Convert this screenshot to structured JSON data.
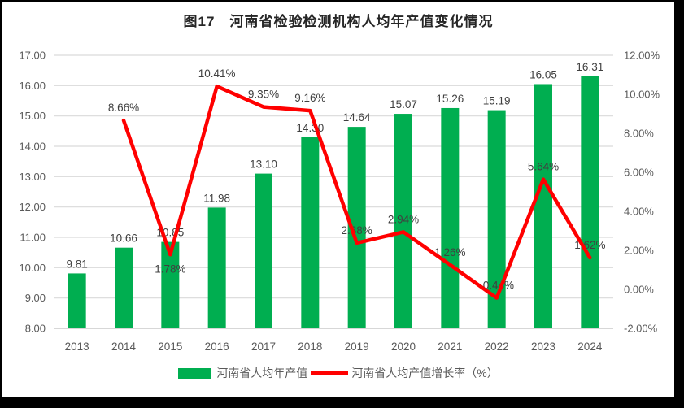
{
  "figure": {
    "title": "图17　河南省检验检测机构人均年产值变化情况"
  },
  "chart_data": {
    "type": "combo-bar-line",
    "title": "图17　河南省检验检测机构人均年产值变化情况",
    "categories": [
      "2013",
      "2014",
      "2015",
      "2016",
      "2017",
      "2018",
      "2019",
      "2020",
      "2021",
      "2022",
      "2023",
      "2024"
    ],
    "series": [
      {
        "name": "河南省人均年产值",
        "type": "bar",
        "axis": "left",
        "color": "#00AE50",
        "values": [
          9.81,
          10.66,
          10.85,
          11.98,
          13.1,
          14.3,
          14.64,
          15.07,
          15.26,
          15.19,
          16.05,
          16.31
        ],
        "labels": [
          "9.81",
          "10.66",
          "10.85",
          "11.98",
          "13.10",
          "14.30",
          "14.64",
          "15.07",
          "15.26",
          "15.19",
          "16.05",
          "16.31"
        ]
      },
      {
        "name": "河南省人均产值增长率（%）",
        "type": "line",
        "axis": "right",
        "color": "#FF0000",
        "values": [
          null,
          8.66,
          1.78,
          10.41,
          9.35,
          9.16,
          2.38,
          2.94,
          1.26,
          -0.44,
          5.64,
          1.62
        ],
        "labels": [
          "",
          "8.66%",
          "1.78%",
          "10.41%",
          "9.35%",
          "9.16%",
          "2.38%",
          "2.94%",
          "1.26%",
          "-0.44%",
          "5.64%",
          "1.62%"
        ],
        "labels_below_point_indices": [
          2
        ]
      }
    ],
    "left_axis": {
      "min": 8,
      "max": 17,
      "step": 1,
      "ticks": [
        "8.00",
        "9.00",
        "10.00",
        "11.00",
        "12.00",
        "13.00",
        "14.00",
        "15.00",
        "16.00",
        "17.00"
      ]
    },
    "right_axis": {
      "min": -2,
      "max": 12,
      "step": 2,
      "ticks": [
        "-2.00%",
        "0.00%",
        "2.00%",
        "4.00%",
        "6.00%",
        "8.00%",
        "10.00%",
        "12.00%"
      ]
    },
    "grid": true,
    "legend_position": "bottom",
    "colors": {
      "gridline": "#D9D9D9",
      "axis_line": "#BFBFBF",
      "tick_label": "#595959",
      "data_label": "#404040"
    }
  }
}
